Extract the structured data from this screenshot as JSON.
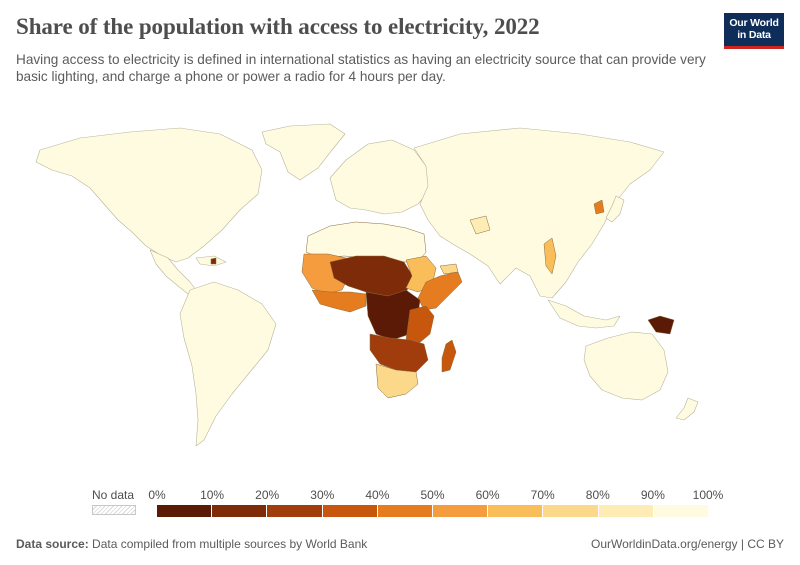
{
  "title": "Share of the population with access to electricity, 2022",
  "subtitle": "Having access to electricity is defined in international statistics as having an electricity source that can provide very basic lighting, and charge a phone or power a radio for 4 hours per day.",
  "logo": {
    "line1": "Our World",
    "line2": "in Data",
    "bg_color": "#0f2d59",
    "accent_color": "#ce261e"
  },
  "legend": {
    "no_data_label": "No data",
    "ticks": [
      "0%",
      "10%",
      "20%",
      "30%",
      "40%",
      "50%",
      "60%",
      "70%",
      "80%",
      "90%",
      "100%"
    ],
    "bin_colors": [
      "#5b1a05",
      "#7e2b0a",
      "#a13d0c",
      "#c7570d",
      "#e57c1f",
      "#f59d3e",
      "#f9bd5a",
      "#fcd88b",
      "#fdecb3",
      "#fefbe1"
    ]
  },
  "footer": {
    "source_label": "Data source:",
    "source_text": "Data compiled from multiple sources by World Bank",
    "right_text": "OurWorldinData.org/energy | CC BY"
  }
}
